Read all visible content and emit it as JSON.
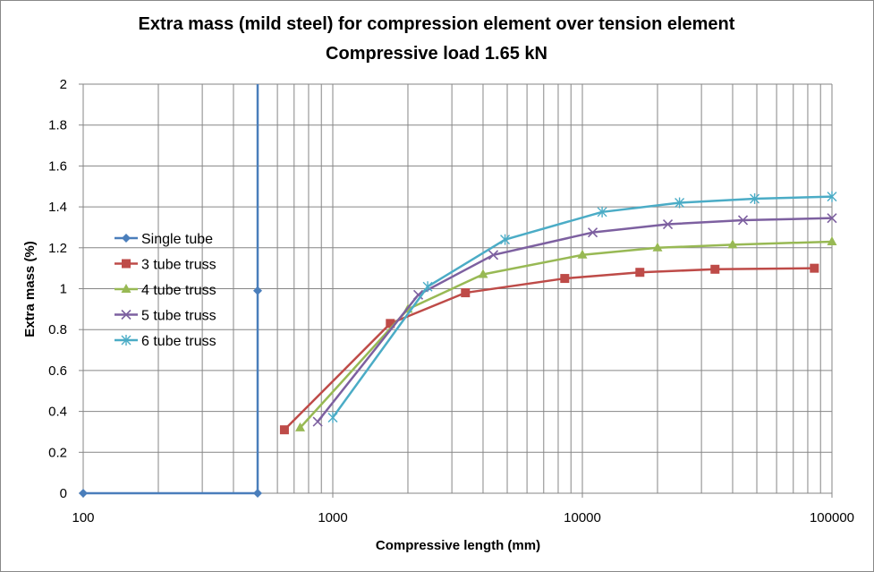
{
  "chart_data": {
    "type": "line",
    "title": "Extra mass (mild steel) for compression element over tension element",
    "subtitle": "Compressive load 1.65 kN",
    "xlabel": "Compressive  length (mm)",
    "ylabel": "Extra mass (%)",
    "xscale": "log",
    "xlim": [
      100,
      100000
    ],
    "ylim": [
      0,
      2
    ],
    "xticks": [
      100,
      1000,
      10000,
      100000
    ],
    "xtick_labels": [
      "100",
      "1000",
      "10000",
      "100000"
    ],
    "yticks": [
      0,
      0.2,
      0.4,
      0.6,
      0.8,
      1,
      1.2,
      1.4,
      1.6,
      1.8,
      2
    ],
    "ytick_labels": [
      "0",
      "0.2",
      "0.4",
      "0.6",
      "0.8",
      "1",
      "1.2",
      "1.4",
      "1.6",
      "1.8",
      "2"
    ],
    "grid": true,
    "legend_position": "left",
    "series": [
      {
        "name": "Single tube",
        "color": "#4a7ebb",
        "marker": "diamond",
        "points": [
          [
            100,
            0
          ],
          [
            500,
            0
          ],
          [
            500,
            0.99
          ],
          [
            500,
            2.0
          ]
        ]
      },
      {
        "name": "3 tube truss",
        "color": "#be4b48",
        "marker": "square",
        "points": [
          [
            640,
            0.31
          ],
          [
            1700,
            0.83
          ],
          [
            3400,
            0.98
          ],
          [
            8500,
            1.05
          ],
          [
            17000,
            1.08
          ],
          [
            34000,
            1.095
          ],
          [
            85000,
            1.1
          ]
        ]
      },
      {
        "name": "4 tube truss",
        "color": "#98b954",
        "marker": "triangle",
        "points": [
          [
            740,
            0.32
          ],
          [
            2000,
            0.9
          ],
          [
            4000,
            1.07
          ],
          [
            10000,
            1.165
          ],
          [
            20000,
            1.2
          ],
          [
            40000,
            1.215
          ],
          [
            100000,
            1.23
          ]
        ]
      },
      {
        "name": "5 tube truss",
        "color": "#7d60a0",
        "marker": "x",
        "points": [
          [
            870,
            0.35
          ],
          [
            2200,
            0.97
          ],
          [
            4400,
            1.165
          ],
          [
            11000,
            1.275
          ],
          [
            22000,
            1.315
          ],
          [
            44000,
            1.335
          ],
          [
            100000,
            1.345
          ]
        ]
      },
      {
        "name": "6 tube truss",
        "color": "#4bacc6",
        "marker": "star",
        "points": [
          [
            1000,
            0.37
          ],
          [
            2400,
            1.01
          ],
          [
            4900,
            1.24
          ],
          [
            12000,
            1.375
          ],
          [
            24500,
            1.42
          ],
          [
            49000,
            1.44
          ],
          [
            100000,
            1.45
          ]
        ]
      }
    ]
  }
}
